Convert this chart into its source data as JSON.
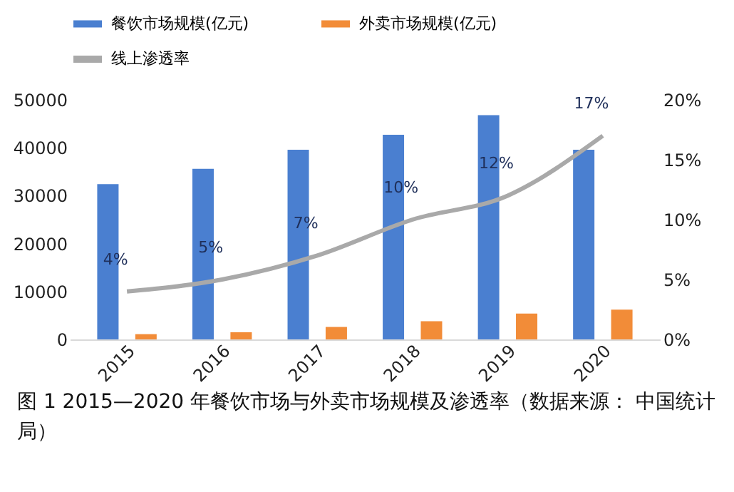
{
  "chart_data": {
    "type": "bar",
    "categories": [
      "2015",
      "2016",
      "2017",
      "2018",
      "2019",
      "2020"
    ],
    "series": [
      {
        "name": "餐饮市场规模(亿元)",
        "color": "#4a7fd0",
        "values": [
          32400,
          35600,
          39600,
          42700,
          46800,
          39600
        ]
      },
      {
        "name": "外卖市场规模(亿元)",
        "color": "#f28c38",
        "values": [
          1100,
          1500,
          2600,
          3800,
          5400,
          6200
        ]
      },
      {
        "name": "线上渗透率",
        "type": "line",
        "axis": "y2",
        "color": "#a9a9a9",
        "values": [
          4,
          5,
          7,
          10,
          12,
          17
        ],
        "value_labels": [
          "4%",
          "5%",
          "7%",
          "10%",
          "12%",
          "17%"
        ]
      }
    ],
    "ylim": [
      0,
      50000
    ],
    "yticks": [
      0,
      10000,
      20000,
      30000,
      40000,
      50000
    ],
    "y2lim": [
      0,
      20
    ],
    "y2ticks": [
      {
        "value": 0,
        "label": "0%"
      },
      {
        "value": 5,
        "label": "5%"
      },
      {
        "value": 10,
        "label": "10%"
      },
      {
        "value": 15,
        "label": "15%"
      },
      {
        "value": 20,
        "label": "20%"
      }
    ],
    "legend": "top",
    "grid": false,
    "annotations": [
      "图 1 2015—2020 年餐饮市场与外卖市场规模及渗透率（数据来源： 中国统计局）"
    ]
  }
}
